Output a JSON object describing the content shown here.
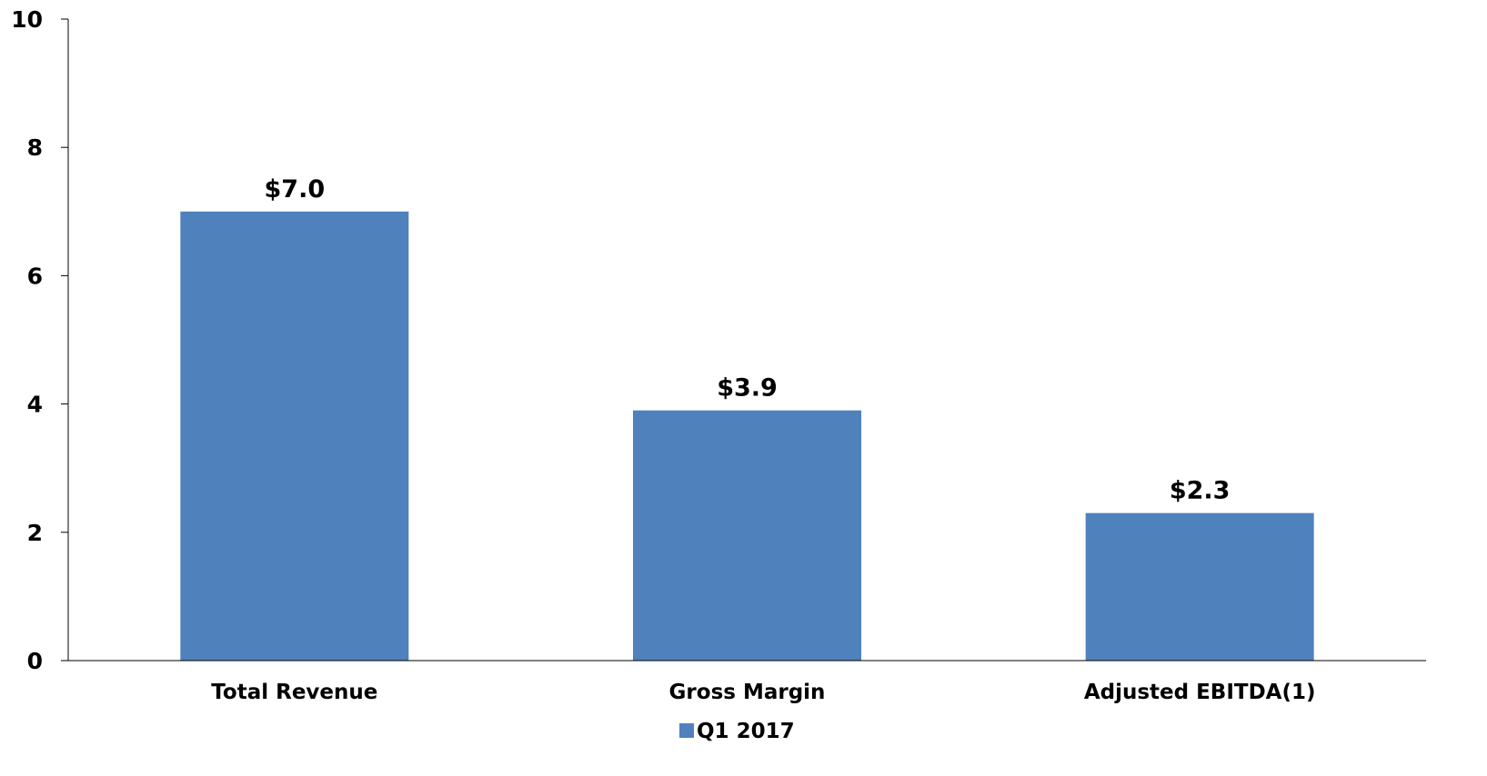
{
  "chart_data": {
    "type": "bar",
    "categories": [
      "Total Revenue",
      "Gross Margin",
      "Adjusted EBITDA(1)"
    ],
    "series": [
      {
        "name": "Q1 2017",
        "values": [
          7.0,
          3.9,
          2.3
        ],
        "data_labels": [
          "$7.0",
          "$3.9",
          "$2.3"
        ]
      }
    ],
    "title": "",
    "xlabel": "",
    "ylabel": "",
    "ylim": [
      0,
      10
    ],
    "yticks": [
      0,
      2,
      4,
      6,
      8,
      10
    ],
    "ytick_labels": [
      "0",
      "2",
      "4",
      "6",
      "8",
      "10"
    ],
    "grid": false,
    "legend_position": "bottom-center",
    "colors": {
      "bar": "#4f81bd",
      "axis": "#000000",
      "text": "#000000"
    }
  }
}
